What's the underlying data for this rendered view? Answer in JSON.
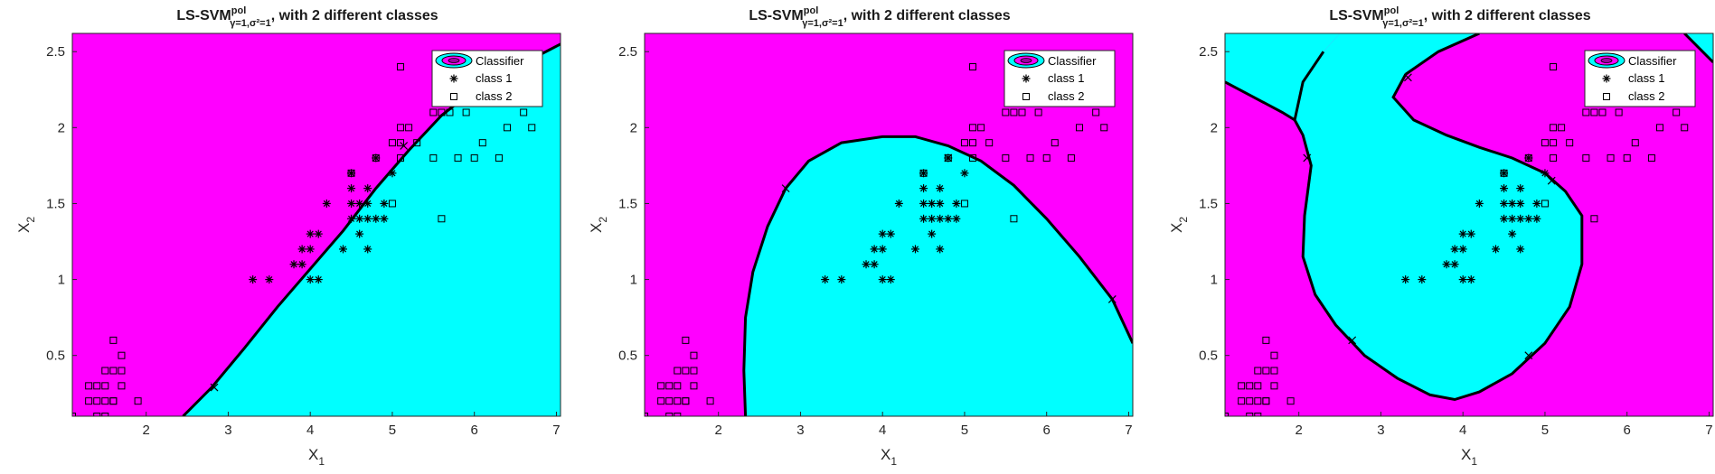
{
  "colors": {
    "region_class1": "#ff00ff",
    "region_class2": "#00ffff",
    "boundary": "#000000",
    "marker": "#000000"
  },
  "chart_data": [
    {
      "type": "scatter",
      "title": {
        "main": "LS-SVM",
        "superscript": "pol",
        "subscript": "γ=1,σ²=1",
        "rest": ", with 2 different classes"
      },
      "xlabel": {
        "main": "X",
        "sub": "1"
      },
      "ylabel": {
        "main": "X",
        "sub": "2"
      },
      "xlim": [
        1.1,
        7.05
      ],
      "ylim": [
        0.1,
        2.62
      ],
      "xticks": [
        "2",
        "3",
        "4",
        "5",
        "6",
        "7"
      ],
      "yticks": [
        "0.5",
        "1",
        "1.5",
        "2",
        "2.5"
      ],
      "legend": {
        "position": "top-right",
        "entries": [
          "Classifier",
          "class 1",
          "class 2"
        ]
      },
      "decision_boundary": [
        [
          2.45,
          0.1
        ],
        [
          2.8,
          0.29
        ],
        [
          3.2,
          0.55
        ],
        [
          3.6,
          0.82
        ],
        [
          4.0,
          1.07
        ],
        [
          4.4,
          1.32
        ],
        [
          4.8,
          1.6
        ],
        [
          5.2,
          1.85
        ],
        [
          5.6,
          2.08
        ],
        [
          6.0,
          2.25
        ],
        [
          6.4,
          2.38
        ],
        [
          6.8,
          2.48
        ],
        [
          7.05,
          2.55
        ]
      ],
      "support_vectors_marked": [
        [
          2.83,
          0.29
        ],
        [
          5.14,
          1.88
        ],
        [
          6.05,
          2.3
        ]
      ],
      "grid": false
    },
    {
      "type": "scatter",
      "title": {
        "main": "LS-SVM",
        "superscript": "pol",
        "subscript": "γ=1,σ²=1",
        "rest": ", with 2 different classes"
      },
      "xlabel": {
        "main": "X",
        "sub": "1"
      },
      "ylabel": {
        "main": "X",
        "sub": "2"
      },
      "xlim": [
        1.1,
        7.05
      ],
      "ylim": [
        0.1,
        2.62
      ],
      "xticks": [
        "2",
        "3",
        "4",
        "5",
        "6",
        "7"
      ],
      "yticks": [
        "0.5",
        "1",
        "1.5",
        "2",
        "2.5"
      ],
      "legend": {
        "position": "top-right",
        "entries": [
          "Classifier",
          "class 1",
          "class 2"
        ]
      },
      "decision_boundary": [
        [
          2.33,
          0.1
        ],
        [
          2.31,
          0.4
        ],
        [
          2.33,
          0.75
        ],
        [
          2.42,
          1.05
        ],
        [
          2.6,
          1.35
        ],
        [
          2.82,
          1.6
        ],
        [
          3.1,
          1.78
        ],
        [
          3.5,
          1.9
        ],
        [
          4.0,
          1.94
        ],
        [
          4.4,
          1.94
        ],
        [
          4.8,
          1.88
        ],
        [
          5.2,
          1.78
        ],
        [
          5.6,
          1.62
        ],
        [
          6.0,
          1.4
        ],
        [
          6.4,
          1.15
        ],
        [
          6.8,
          0.87
        ],
        [
          7.05,
          0.58
        ]
      ],
      "support_vectors_marked": [
        [
          2.82,
          1.6
        ],
        [
          4.8,
          1.8
        ],
        [
          6.8,
          0.87
        ]
      ],
      "grid": false
    },
    {
      "type": "scatter",
      "title": {
        "main": "LS-SVM",
        "superscript": "pol",
        "subscript": "γ=1,σ²=1",
        "rest": ", with 2 different classes"
      },
      "xlabel": {
        "main": "X",
        "sub": "1"
      },
      "ylabel": {
        "main": "X",
        "sub": "2"
      },
      "xlim": [
        1.1,
        7.05
      ],
      "ylim": [
        0.1,
        2.62
      ],
      "xticks": [
        "2",
        "3",
        "4",
        "5",
        "6",
        "7"
      ],
      "yticks": [
        "0.5",
        "1",
        "1.5",
        "2",
        "2.5"
      ],
      "legend": {
        "position": "top-right",
        "entries": [
          "Classifier",
          "class 1",
          "class 2"
        ]
      },
      "decision_boundary_closed": [
        [
          3.3,
          2.35
        ],
        [
          3.15,
          2.2
        ],
        [
          3.4,
          2.05
        ],
        [
          3.8,
          1.95
        ],
        [
          4.2,
          1.87
        ],
        [
          4.6,
          1.8
        ],
        [
          5.0,
          1.7
        ],
        [
          5.25,
          1.58
        ],
        [
          5.45,
          1.42
        ],
        [
          5.45,
          1.1
        ],
        [
          5.3,
          0.82
        ],
        [
          5.0,
          0.58
        ],
        [
          4.6,
          0.38
        ],
        [
          4.2,
          0.26
        ],
        [
          3.9,
          0.21
        ],
        [
          3.6,
          0.24
        ],
        [
          3.2,
          0.35
        ],
        [
          2.8,
          0.5
        ],
        [
          2.45,
          0.7
        ],
        [
          2.2,
          0.9
        ],
        [
          2.05,
          1.15
        ],
        [
          2.07,
          1.42
        ],
        [
          2.15,
          1.75
        ],
        [
          2.05,
          1.95
        ],
        [
          1.95,
          2.05
        ],
        [
          2.05,
          2.3
        ],
        [
          2.3,
          2.5
        ],
        [
          2.5,
          2.62
        ],
        [
          4.2,
          2.62
        ],
        [
          3.7,
          2.5
        ]
      ],
      "decision_boundary_corner": [
        [
          6.7,
          2.62
        ],
        [
          7.05,
          2.43
        ]
      ],
      "support_vectors_marked": [
        [
          3.33,
          2.33
        ],
        [
          5.08,
          1.65
        ],
        [
          4.8,
          0.5
        ],
        [
          2.65,
          0.6
        ],
        [
          2.1,
          1.8
        ]
      ],
      "grid": false
    }
  ],
  "points": {
    "class1": [
      [
        3.3,
        1.0
      ],
      [
        3.5,
        1.0
      ],
      [
        3.9,
        1.1
      ],
      [
        3.8,
        1.1
      ],
      [
        3.9,
        1.2
      ],
      [
        4.0,
        1.2
      ],
      [
        4.0,
        1.3
      ],
      [
        4.1,
        1.3
      ],
      [
        4.0,
        1.0
      ],
      [
        4.1,
        1.0
      ],
      [
        4.2,
        1.5
      ],
      [
        4.4,
        1.2
      ],
      [
        4.5,
        1.4
      ],
      [
        4.5,
        1.5
      ],
      [
        4.5,
        1.6
      ],
      [
        4.6,
        1.3
      ],
      [
        4.6,
        1.4
      ],
      [
        4.6,
        1.5
      ],
      [
        4.7,
        1.4
      ],
      [
        4.7,
        1.5
      ],
      [
        4.7,
        1.6
      ],
      [
        4.7,
        1.2
      ],
      [
        4.8,
        1.4
      ],
      [
        4.8,
        1.8
      ],
      [
        4.9,
        1.5
      ],
      [
        4.9,
        1.4
      ],
      [
        5.0,
        1.7
      ],
      [
        4.5,
        1.7
      ]
    ],
    "class2": [
      [
        1.1,
        0.1
      ],
      [
        1.3,
        0.2
      ],
      [
        1.3,
        0.3
      ],
      [
        1.4,
        0.1
      ],
      [
        1.4,
        0.2
      ],
      [
        1.4,
        0.3
      ],
      [
        1.5,
        0.1
      ],
      [
        1.5,
        0.2
      ],
      [
        1.5,
        0.3
      ],
      [
        1.5,
        0.4
      ],
      [
        1.6,
        0.2
      ],
      [
        1.6,
        0.4
      ],
      [
        1.6,
        0.6
      ],
      [
        1.7,
        0.3
      ],
      [
        1.7,
        0.4
      ],
      [
        1.7,
        0.5
      ],
      [
        1.9,
        0.2
      ],
      [
        1.6,
        0.2
      ],
      [
        4.5,
        1.7
      ],
      [
        4.8,
        1.8
      ],
      [
        5.0,
        1.5
      ],
      [
        5.1,
        1.9
      ],
      [
        5.1,
        1.8
      ],
      [
        5.1,
        2.0
      ],
      [
        5.1,
        2.4
      ],
      [
        5.2,
        2.0
      ],
      [
        5.3,
        1.9
      ],
      [
        5.5,
        1.8
      ],
      [
        5.5,
        2.1
      ],
      [
        5.6,
        2.1
      ],
      [
        5.6,
        1.4
      ],
      [
        5.7,
        2.1
      ],
      [
        5.8,
        1.8
      ],
      [
        5.9,
        2.1
      ],
      [
        6.0,
        1.8
      ],
      [
        6.1,
        1.9
      ],
      [
        6.3,
        1.8
      ],
      [
        6.4,
        2.0
      ],
      [
        6.6,
        2.1
      ],
      [
        6.7,
        2.0
      ],
      [
        6.7,
        2.2
      ],
      [
        5.8,
        2.2
      ],
      [
        5.0,
        1.9
      ]
    ]
  }
}
